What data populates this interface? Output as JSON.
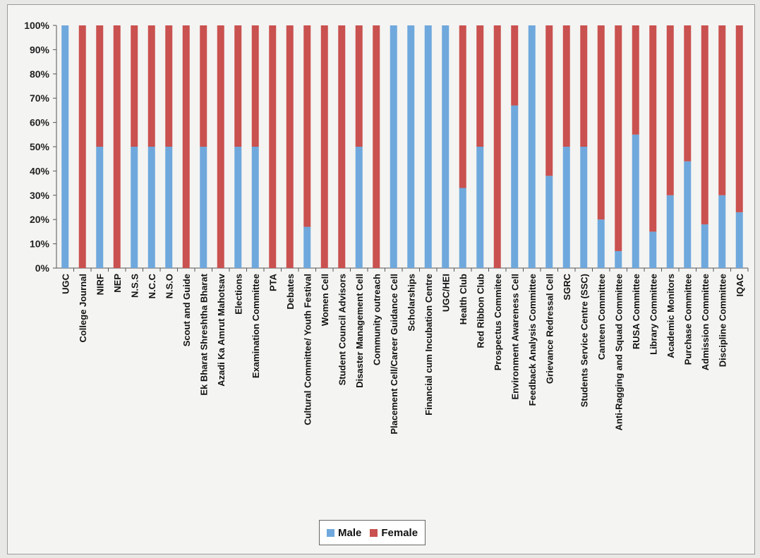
{
  "chart_data": {
    "type": "bar",
    "stacked": true,
    "normalized_percent": true,
    "y_ticks": [
      "0%",
      "10%",
      "20%",
      "30%",
      "40%",
      "50%",
      "60%",
      "70%",
      "80%",
      "90%",
      "100%"
    ],
    "ylim": [
      0,
      100
    ],
    "grid": false,
    "legend_position": "bottom",
    "categories": [
      "UGC",
      "College Journal",
      "NIRF",
      "NEP",
      "N.S.S",
      "N.C.C",
      "N.S.O",
      "Scout and Guide",
      "Ek Bharat Shreshtha Bharat",
      "Azadi Ka Amrut Mahotsav",
      "Elections",
      "Examination Committee",
      "PTA",
      "Debates",
      "Cultural Committee/ Youth Festival",
      "Women Cell",
      "Student Council Advisors",
      "Disaster Management Cell",
      "Community outreach",
      "Placement Cell/Career Guidance Cell",
      "Scholarships",
      "Financial cum Incubation Centre",
      "UGC/HEI",
      "Health Club",
      "Red Ribbon Club",
      "Prospectus Commitee",
      "Environment Awareness Cell",
      "Feedback Analysis Committee",
      "Grievance Redressal Cell",
      "SGRC",
      "Students Service Centre (SSC)",
      "Canteen Committee",
      "Anti-Ragging and Squad Committee",
      "RUSA Committee",
      "Library Committee",
      "Academic Monitors",
      "Purchase Committee",
      "Admission Committee",
      "Discipline Committee",
      "IQAC"
    ],
    "series": [
      {
        "name": "Male",
        "color": "#6fa8dc",
        "values": [
          100,
          0,
          50,
          0,
          50,
          50,
          50,
          0,
          50,
          0,
          50,
          50,
          0,
          0,
          17,
          0,
          0,
          50,
          0,
          100,
          100,
          100,
          100,
          33,
          50,
          0,
          67,
          100,
          38,
          50,
          50,
          20,
          7,
          55,
          15,
          30,
          44,
          18,
          30,
          23
        ]
      },
      {
        "name": "Female",
        "color": "#c9514f",
        "values": [
          0,
          100,
          50,
          100,
          50,
          50,
          50,
          100,
          50,
          100,
          50,
          50,
          100,
          100,
          83,
          100,
          100,
          50,
          100,
          0,
          0,
          0,
          0,
          67,
          50,
          100,
          33,
          0,
          62,
          50,
          50,
          80,
          93,
          45,
          85,
          70,
          56,
          82,
          70,
          77
        ]
      }
    ]
  }
}
